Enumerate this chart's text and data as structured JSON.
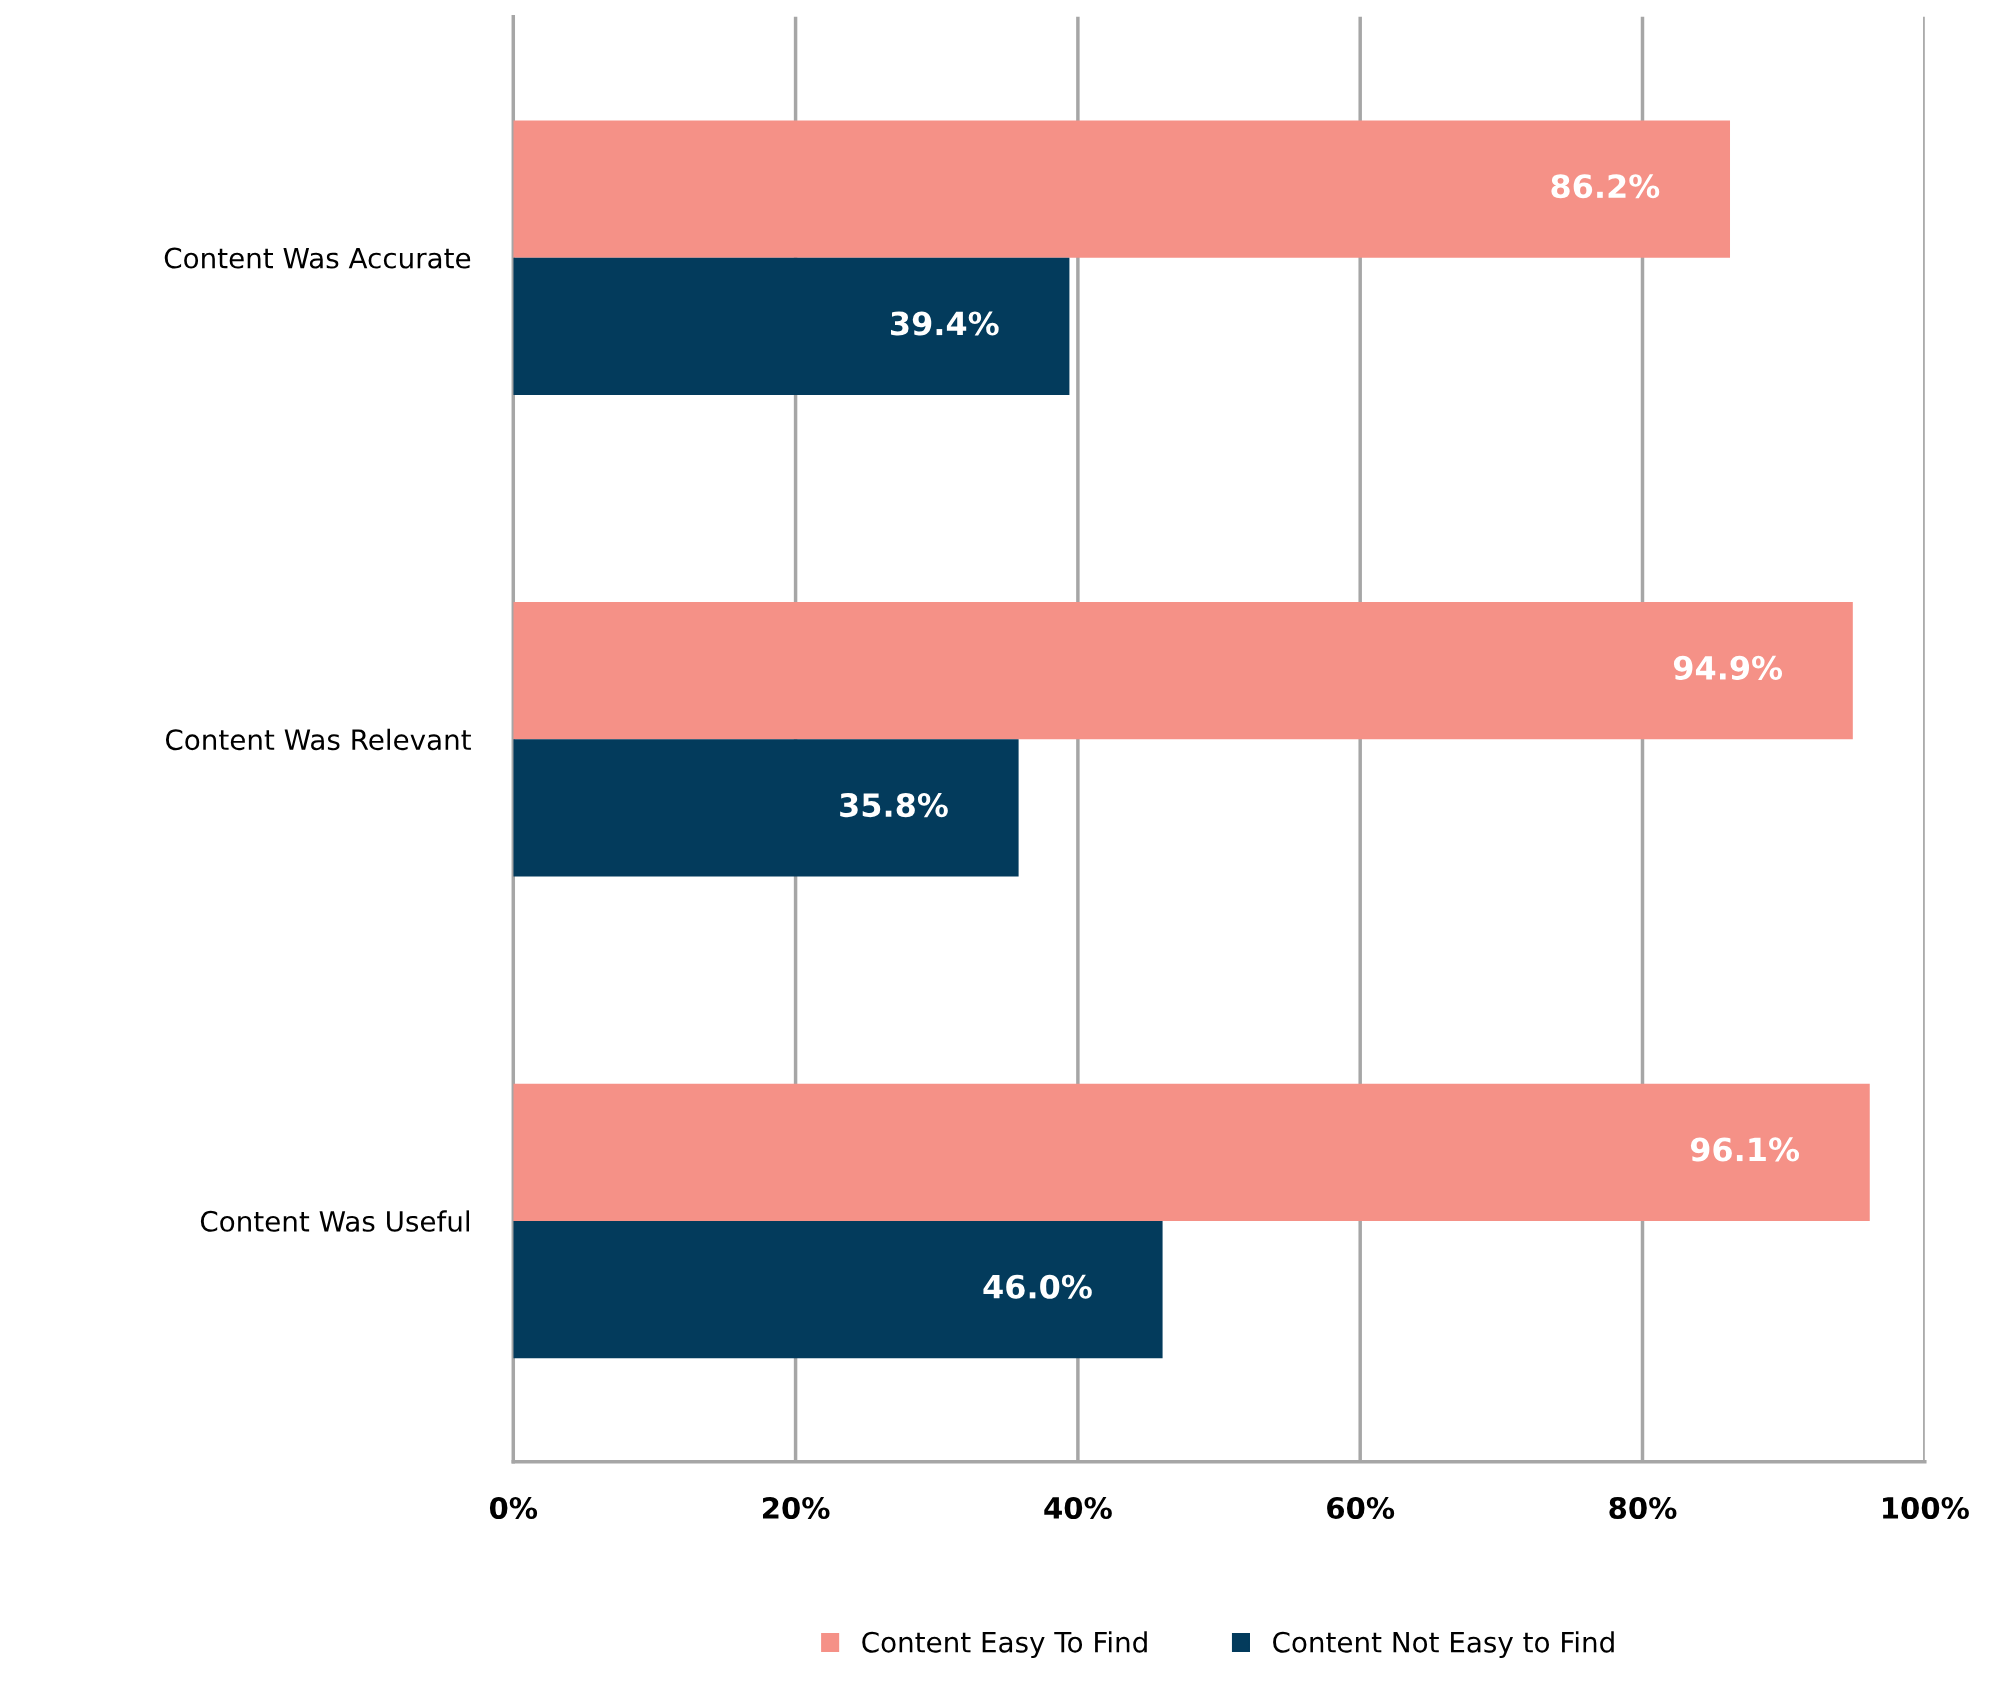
{
  "chart_data": {
    "type": "bar",
    "orientation": "horizontal",
    "categories": [
      "Content Was Accurate",
      "Content Was Relevant",
      "Content Was Useful"
    ],
    "series": [
      {
        "name": "Content Easy To Find",
        "color": "#f59187",
        "values": [
          86.2,
          94.9,
          96.1
        ],
        "value_labels": [
          "86.2%",
          "94.9%",
          "96.1%"
        ]
      },
      {
        "name": "Content Not Easy to Find",
        "color": "#033b5c",
        "values": [
          39.4,
          35.8,
          46.0
        ],
        "value_labels": [
          "39.4%",
          "35.8%",
          "46.0%"
        ]
      }
    ],
    "xlim": [
      0,
      100
    ],
    "xticks": [
      {
        "value": 0,
        "label": "0%"
      },
      {
        "value": 20,
        "label": "20%"
      },
      {
        "value": 40,
        "label": "40%"
      },
      {
        "value": 60,
        "label": "60%"
      },
      {
        "value": 80,
        "label": "80%"
      },
      {
        "value": 100,
        "label": "100%"
      }
    ],
    "grid": "x",
    "legend": "bottom"
  }
}
